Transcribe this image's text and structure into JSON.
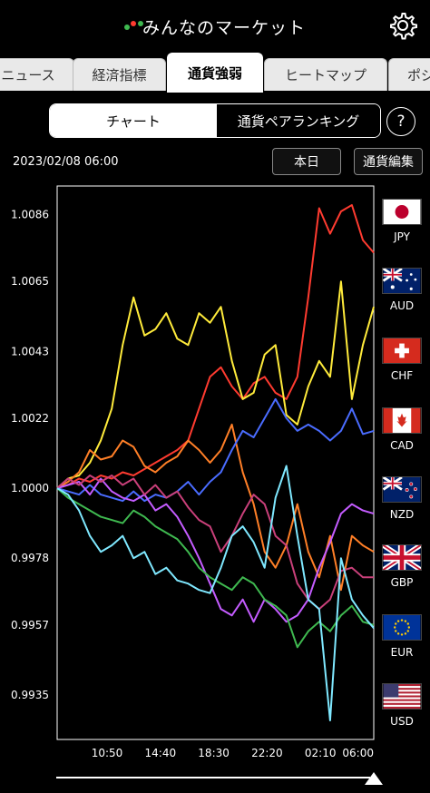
{
  "header": {
    "title": "みんなのマーケット"
  },
  "tabs": [
    {
      "label": "ニュース"
    },
    {
      "label": "経済指標"
    },
    {
      "label": "通貨強弱"
    },
    {
      "label": "ヒートマップ"
    },
    {
      "label": "ポジ"
    }
  ],
  "segment": {
    "chart_label": "チャート",
    "ranking_label": "通貨ペアランキング"
  },
  "help_label": "?",
  "datetime": "2023/02/08 06:00",
  "buttons": {
    "today": "本日",
    "edit": "通貨編集"
  },
  "legend": [
    {
      "code": "JPY",
      "color": "#ff3b30"
    },
    {
      "code": "AUD",
      "color": "#ffeb3b"
    },
    {
      "code": "CHF",
      "color": "#ff7f27"
    },
    {
      "code": "CAD",
      "color": "#4a6cff"
    },
    {
      "code": "NZD",
      "color": "#c45cff"
    },
    {
      "code": "GBP",
      "color": "#c9407a"
    },
    {
      "code": "EUR",
      "color": "#3fb950"
    },
    {
      "code": "USD",
      "color": "#7fe8ff"
    }
  ],
  "chart_data": {
    "type": "line",
    "yticks": [
      "1.0086",
      "1.0065",
      "1.0043",
      "1.0022",
      "1.0000",
      "0.9978",
      "0.9957",
      "0.9935"
    ],
    "ytick_values": [
      1.0086,
      1.0065,
      1.0043,
      1.0022,
      1.0,
      0.9978,
      0.9957,
      0.9935
    ],
    "ylim": [
      0.9921,
      1.0095
    ],
    "xticks": [
      "10:50",
      "14:40",
      "18:30",
      "22:20",
      "02:10",
      "06:00"
    ],
    "x_count": 30,
    "series": [
      {
        "name": "JPY",
        "color": "#ff3b30",
        "values": [
          1.0,
          1.0001,
          1.0003,
          1.0002,
          1.0004,
          1.0003,
          1.0005,
          1.0004,
          1.0006,
          1.0008,
          1.001,
          1.0012,
          1.0015,
          1.0025,
          1.0035,
          1.0038,
          1.0032,
          1.0028,
          1.0033,
          1.0035,
          1.003,
          1.0028,
          1.0035,
          1.006,
          1.0088,
          1.008,
          1.0087,
          1.0089,
          1.0078,
          1.0074
        ]
      },
      {
        "name": "AUD",
        "color": "#ffeb3b",
        "values": [
          1.0,
          1.0003,
          1.0004,
          1.0008,
          1.0015,
          1.0025,
          1.0045,
          1.006,
          1.0048,
          1.005,
          1.0055,
          1.0047,
          1.0045,
          1.0055,
          1.0052,
          1.0057,
          1.004,
          1.0028,
          1.003,
          1.0042,
          1.0045,
          1.0023,
          1.002,
          1.0032,
          1.004,
          1.0035,
          1.0065,
          1.0028,
          1.0045,
          1.0057
        ]
      },
      {
        "name": "CHF",
        "color": "#ff7f27",
        "values": [
          1.0,
          1.0002,
          1.0005,
          1.0012,
          1.0009,
          1.001,
          1.0015,
          1.0013,
          1.0007,
          1.0005,
          1.0008,
          1.001,
          1.0015,
          1.0012,
          1.0008,
          1.0012,
          1.002,
          1.0005,
          0.9995,
          0.998,
          0.9975,
          0.9982,
          0.9995,
          0.998,
          0.9972,
          0.9985,
          0.9968,
          0.9985,
          0.9982,
          0.998
        ]
      },
      {
        "name": "CAD",
        "color": "#4a6cff",
        "values": [
          1.0,
          0.9999,
          0.9998,
          1.0001,
          0.9998,
          0.9997,
          0.9996,
          0.9999,
          0.9996,
          0.9998,
          0.9997,
          0.9999,
          1.0002,
          0.9998,
          1.0002,
          1.0005,
          1.0012,
          1.0018,
          1.0016,
          1.0022,
          1.0028,
          1.0022,
          1.0018,
          1.002,
          1.0018,
          1.0015,
          1.0018,
          1.0025,
          1.0017,
          1.0018
        ]
      },
      {
        "name": "NZD",
        "color": "#c45cff",
        "values": [
          1.0,
          1.0001,
          1.0002,
          0.9998,
          1.0003,
          0.9999,
          0.9997,
          0.9996,
          0.9998,
          0.9993,
          0.9995,
          0.9991,
          0.9985,
          0.9978,
          0.997,
          0.9962,
          0.996,
          0.9965,
          0.9958,
          0.9965,
          0.9962,
          0.9958,
          0.996,
          0.9965,
          0.9975,
          0.9983,
          0.9992,
          0.9995,
          0.9993,
          0.9992
        ]
      },
      {
        "name": "GBP",
        "color": "#c9407a",
        "values": [
          1.0,
          1.0003,
          1.0001,
          1.0004,
          1.0002,
          1.0004,
          1.0001,
          1.0003,
          0.9998,
          1.0001,
          0.9997,
          0.9999,
          0.9994,
          0.999,
          0.9988,
          0.998,
          0.9985,
          0.9992,
          0.9998,
          0.9995,
          0.9985,
          0.9982,
          0.997,
          0.9965,
          0.9962,
          0.9965,
          0.9974,
          0.9975,
          0.9972,
          0.9972
        ]
      },
      {
        "name": "EUR",
        "color": "#3fb950",
        "values": [
          1.0,
          0.9997,
          0.9995,
          0.9993,
          0.9991,
          0.999,
          0.9989,
          0.9993,
          0.9991,
          0.9988,
          0.9986,
          0.9984,
          0.998,
          0.9975,
          0.9972,
          0.997,
          0.9968,
          0.9972,
          0.997,
          0.9965,
          0.9963,
          0.996,
          0.995,
          0.9955,
          0.9958,
          0.9955,
          0.996,
          0.9963,
          0.9958,
          0.9957
        ]
      },
      {
        "name": "USD",
        "color": "#7fe8ff",
        "values": [
          1.0,
          0.9998,
          0.9993,
          0.9985,
          0.998,
          0.9982,
          0.9985,
          0.9978,
          0.998,
          0.9973,
          0.9975,
          0.9971,
          0.997,
          0.9968,
          0.9967,
          0.9975,
          0.9985,
          0.9988,
          0.9983,
          0.9975,
          0.9997,
          1.0007,
          0.9985,
          0.9965,
          0.9962,
          0.9927,
          0.9978,
          0.9965,
          0.996,
          0.9956
        ]
      }
    ]
  }
}
